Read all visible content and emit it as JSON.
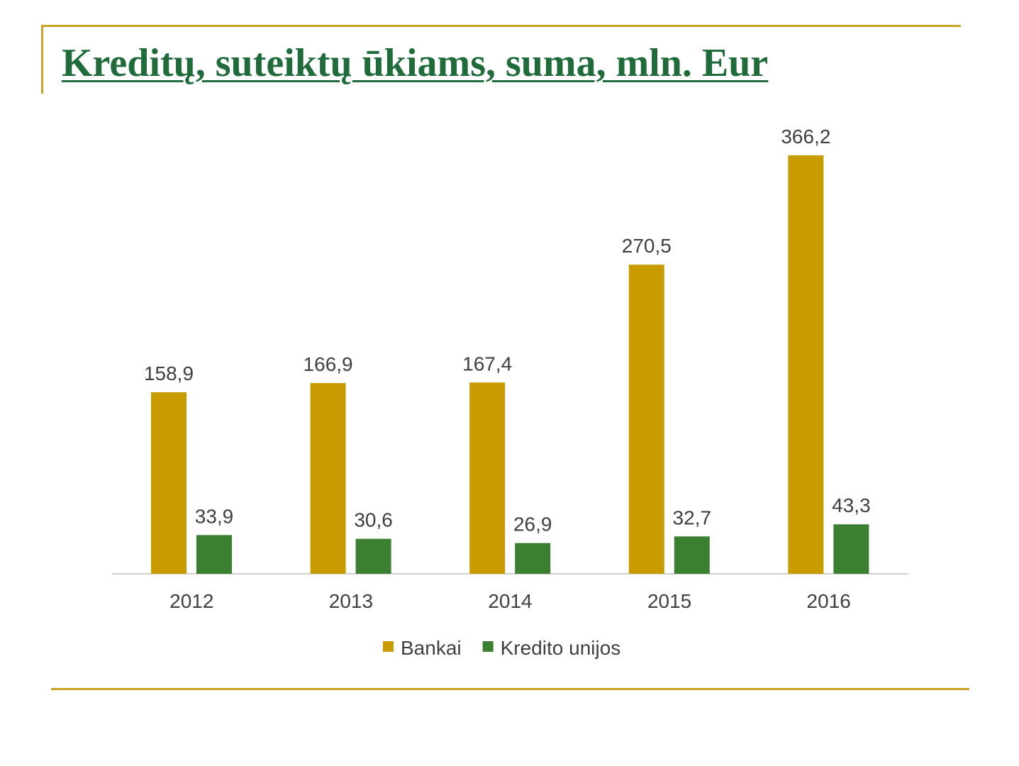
{
  "slide": {
    "title": "Kreditų, suteiktų ūkiams, suma, mln. Eur",
    "accent_color": "#c9a227",
    "title_color": "#1f6b3a"
  },
  "chart_data": {
    "type": "bar",
    "title": "",
    "xlabel": "",
    "ylabel": "",
    "categories": [
      "2012",
      "2013",
      "2014",
      "2015",
      "2016"
    ],
    "series": [
      {
        "name": "Bankai",
        "color": "#c89b00",
        "values": [
          158.9,
          166.9,
          167.4,
          270.5,
          366.2
        ],
        "labels": [
          "158,9",
          "166,9",
          "167,4",
          "270,5",
          "366,2"
        ]
      },
      {
        "name": "Kredito unijos",
        "color": "#3b7f31",
        "values": [
          33.9,
          30.6,
          26.9,
          32.7,
          43.3
        ],
        "labels": [
          "33,9",
          "30,6",
          "26,9",
          "32,7",
          "43,3"
        ]
      }
    ],
    "ylim": [
      0,
      366.2
    ],
    "y_axis_visible": false,
    "grid": false,
    "legend": "bottom"
  }
}
